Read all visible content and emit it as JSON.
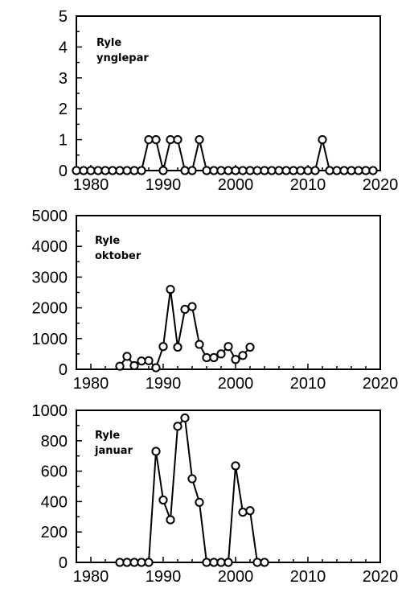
{
  "chart_data": [
    {
      "type": "line",
      "title": "",
      "xlabel": "",
      "ylabel": "",
      "panel_label_lines": [
        "Ryle",
        "ynglepar"
      ],
      "xlim": [
        1978,
        2020
      ],
      "ylim": [
        0,
        5
      ],
      "xticks": [
        1980,
        1990,
        2000,
        2010,
        2020
      ],
      "yticks": [
        0,
        1,
        2,
        3,
        4,
        5
      ],
      "grid": false,
      "marker": "open-circle",
      "series": [
        {
          "x": [
            1978,
            1979,
            1980,
            1981,
            1982,
            1983,
            1984,
            1985,
            1986,
            1987,
            1988,
            1989,
            1990,
            1991,
            1992,
            1993,
            1994,
            1995,
            1996,
            1997,
            1998,
            1999,
            2000,
            2001,
            2002,
            2003,
            2004,
            2005,
            2006,
            2007,
            2008,
            2009,
            2010,
            2011,
            2012,
            2013,
            2014,
            2015,
            2016,
            2017,
            2018,
            2019
          ],
          "y": [
            0,
            0,
            0,
            0,
            0,
            0,
            0,
            0,
            0,
            0,
            1,
            1,
            0,
            1,
            1,
            0,
            0,
            1,
            0,
            0,
            0,
            0,
            0,
            0,
            0,
            0,
            0,
            0,
            0,
            0,
            0,
            0,
            0,
            0,
            1,
            0,
            0,
            0,
            0,
            0,
            0,
            0
          ]
        }
      ]
    },
    {
      "type": "line",
      "title": "",
      "xlabel": "",
      "ylabel": "",
      "panel_label_lines": [
        "Ryle",
        "oktober"
      ],
      "xlim": [
        1978,
        2020
      ],
      "ylim": [
        0,
        5000
      ],
      "xticks": [
        1980,
        1990,
        2000,
        2010,
        2020
      ],
      "yticks": [
        0,
        1000,
        2000,
        3000,
        4000,
        5000
      ],
      "grid": false,
      "marker": "open-circle",
      "series": [
        {
          "x": [
            1984,
            1985,
            1986,
            1987,
            1988,
            1989,
            1990,
            1991,
            1992,
            1993,
            1994,
            1995,
            1996,
            1997,
            1998,
            1999,
            2000,
            2001,
            2002
          ],
          "y": [
            100,
            420,
            120,
            270,
            280,
            50,
            740,
            2600,
            720,
            1950,
            2040,
            810,
            380,
            380,
            500,
            740,
            320,
            450,
            720
          ]
        }
      ]
    },
    {
      "type": "line",
      "title": "",
      "xlabel": "",
      "ylabel": "",
      "panel_label_lines": [
        "Ryle",
        "januar"
      ],
      "xlim": [
        1978,
        2020
      ],
      "ylim": [
        0,
        1000
      ],
      "xticks": [
        1980,
        1990,
        2000,
        2010,
        2020
      ],
      "yticks": [
        0,
        200,
        400,
        600,
        800,
        1000
      ],
      "grid": false,
      "marker": "open-circle",
      "series": [
        {
          "x": [
            1984,
            1985,
            1986,
            1987,
            1988,
            1989,
            1990,
            1991,
            1992,
            1993,
            1994,
            1995,
            1996,
            1997,
            1998,
            1999,
            2000,
            2001,
            2002,
            2003,
            2004
          ],
          "y": [
            0,
            0,
            0,
            0,
            0,
            730,
            410,
            280,
            895,
            950,
            550,
            395,
            0,
            0,
            0,
            0,
            635,
            330,
            340,
            0,
            0
          ]
        }
      ]
    }
  ]
}
